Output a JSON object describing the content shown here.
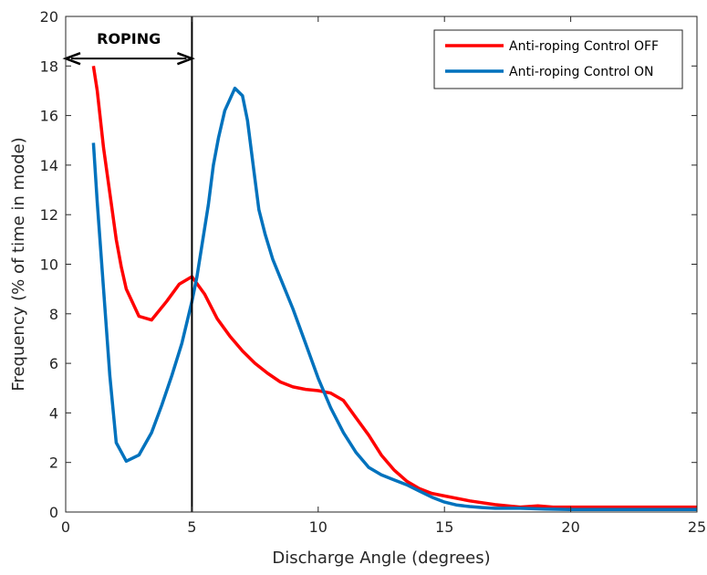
{
  "chart_data": {
    "type": "line",
    "title": "",
    "xlabel": "Discharge Angle (degrees)",
    "ylabel": "Frequency (% of time in mode)",
    "xlim": [
      0,
      25
    ],
    "ylim": [
      0,
      20
    ],
    "xticks": [
      "0",
      "5",
      "10",
      "15",
      "20",
      "25"
    ],
    "yticks": [
      "0",
      "2",
      "4",
      "6",
      "8",
      "10",
      "12",
      "14",
      "16",
      "18",
      "20"
    ],
    "grid": false,
    "legend": "top-right",
    "series": [
      {
        "name": "Anti-roping Control OFF",
        "color": "#ff0000",
        "points": [
          [
            1.1,
            18.0
          ],
          [
            1.25,
            17.0
          ],
          [
            1.5,
            14.7
          ],
          [
            1.8,
            12.5
          ],
          [
            2.0,
            11.0
          ],
          [
            2.2,
            9.9
          ],
          [
            2.4,
            9.0
          ],
          [
            2.9,
            7.9
          ],
          [
            3.4,
            7.75
          ],
          [
            4.0,
            8.5
          ],
          [
            4.5,
            9.2
          ],
          [
            5.0,
            9.5
          ],
          [
            5.5,
            8.8
          ],
          [
            6.0,
            7.8
          ],
          [
            6.5,
            7.1
          ],
          [
            7.0,
            6.5
          ],
          [
            7.5,
            6.0
          ],
          [
            8.0,
            5.6
          ],
          [
            8.5,
            5.25
          ],
          [
            9.0,
            5.05
          ],
          [
            9.5,
            4.95
          ],
          [
            10.0,
            4.9
          ],
          [
            10.5,
            4.8
          ],
          [
            11.0,
            4.5
          ],
          [
            11.5,
            3.8
          ],
          [
            12.0,
            3.1
          ],
          [
            12.5,
            2.3
          ],
          [
            13.0,
            1.7
          ],
          [
            13.5,
            1.25
          ],
          [
            14.0,
            0.95
          ],
          [
            14.5,
            0.75
          ],
          [
            15.0,
            0.65
          ],
          [
            16.0,
            0.45
          ],
          [
            17.0,
            0.3
          ],
          [
            18.0,
            0.2
          ],
          [
            18.7,
            0.25
          ],
          [
            19.3,
            0.2
          ],
          [
            20.0,
            0.2
          ],
          [
            22.0,
            0.2
          ],
          [
            25.0,
            0.2
          ]
        ]
      },
      {
        "name": "Anti-roping Control ON",
        "color": "#0072bd",
        "points": [
          [
            1.1,
            14.9
          ],
          [
            1.25,
            12.5
          ],
          [
            1.5,
            9.0
          ],
          [
            1.75,
            5.5
          ],
          [
            2.0,
            2.8
          ],
          [
            2.4,
            2.05
          ],
          [
            2.9,
            2.3
          ],
          [
            3.4,
            3.2
          ],
          [
            3.8,
            4.3
          ],
          [
            4.2,
            5.5
          ],
          [
            4.6,
            6.8
          ],
          [
            5.0,
            8.5
          ],
          [
            5.2,
            9.5
          ],
          [
            5.4,
            10.8
          ],
          [
            5.65,
            12.4
          ],
          [
            5.85,
            14.0
          ],
          [
            6.05,
            15.1
          ],
          [
            6.3,
            16.2
          ],
          [
            6.7,
            17.1
          ],
          [
            7.0,
            16.8
          ],
          [
            7.2,
            15.8
          ],
          [
            7.45,
            13.8
          ],
          [
            7.65,
            12.2
          ],
          [
            7.9,
            11.2
          ],
          [
            8.2,
            10.2
          ],
          [
            8.6,
            9.2
          ],
          [
            9.0,
            8.2
          ],
          [
            9.5,
            6.8
          ],
          [
            10.0,
            5.4
          ],
          [
            10.5,
            4.2
          ],
          [
            11.0,
            3.2
          ],
          [
            11.5,
            2.4
          ],
          [
            12.0,
            1.8
          ],
          [
            12.5,
            1.5
          ],
          [
            13.0,
            1.3
          ],
          [
            13.5,
            1.1
          ],
          [
            14.0,
            0.85
          ],
          [
            14.5,
            0.6
          ],
          [
            15.0,
            0.4
          ],
          [
            15.5,
            0.28
          ],
          [
            16.0,
            0.22
          ],
          [
            16.5,
            0.18
          ],
          [
            17.0,
            0.15
          ],
          [
            17.5,
            0.15
          ],
          [
            18.0,
            0.15
          ],
          [
            19.0,
            0.12
          ],
          [
            20.0,
            0.1
          ],
          [
            22.0,
            0.1
          ],
          [
            25.0,
            0.1
          ]
        ]
      }
    ],
    "annotations": [
      {
        "text": "ROPING",
        "type": "double-arrow",
        "x_from": 0,
        "x_to": 5,
        "y": 18.3
      },
      {
        "type": "vertical-line",
        "x": 5
      }
    ]
  }
}
